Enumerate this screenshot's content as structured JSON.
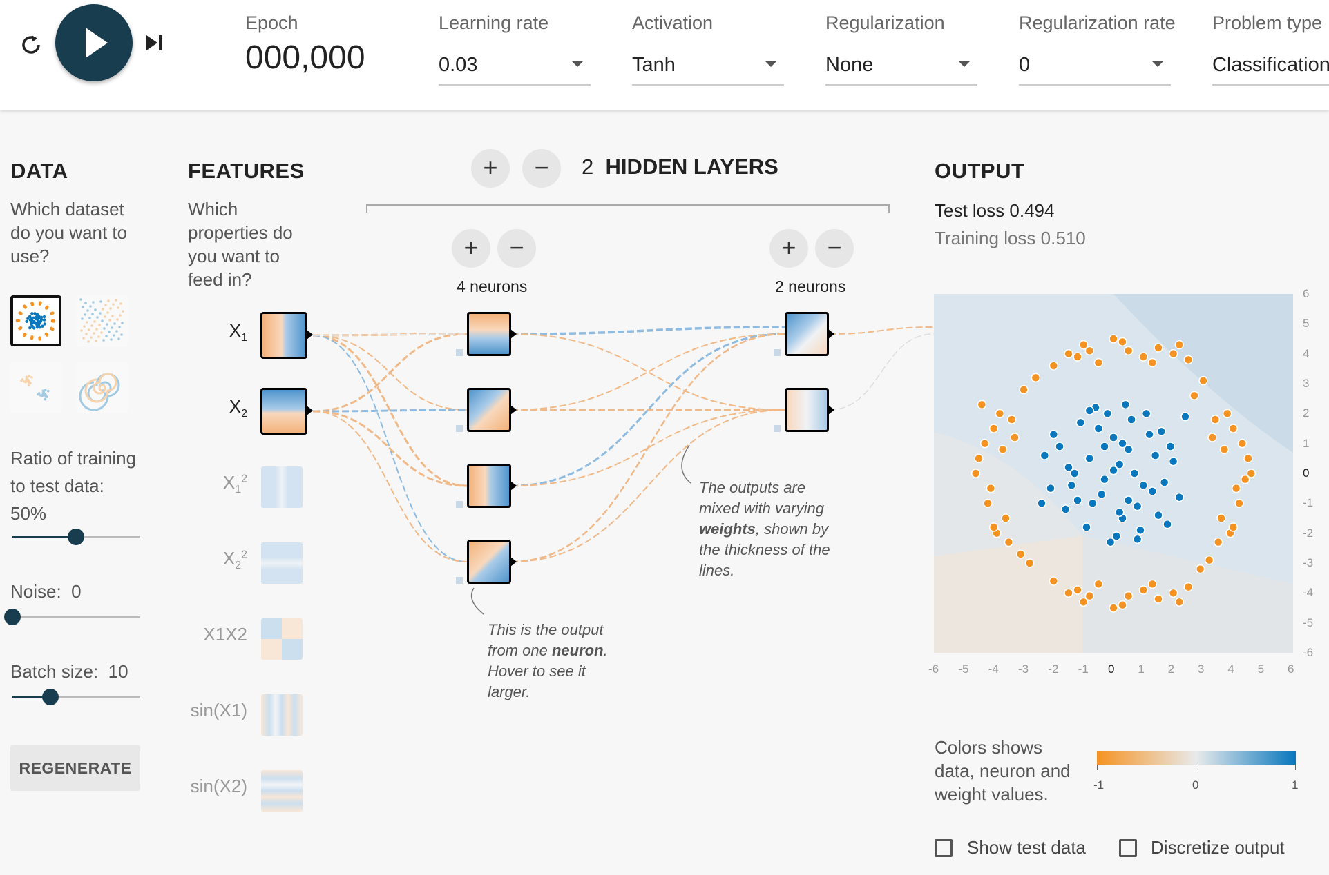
{
  "controls": {
    "epoch_label": "Epoch",
    "epoch_value": "000,000",
    "learning_rate": {
      "label": "Learning rate",
      "value": "0.03"
    },
    "activation": {
      "label": "Activation",
      "value": "Tanh"
    },
    "regularization": {
      "label": "Regularization",
      "value": "None"
    },
    "regularization_rate": {
      "label": "Regularization rate",
      "value": "0"
    },
    "problem_type": {
      "label": "Problem type",
      "value": "Classification"
    }
  },
  "data_panel": {
    "title": "DATA",
    "question": "Which dataset do you want to use?",
    "ratio_label": "Ratio of training to test data:",
    "ratio_value": "50%",
    "ratio_fraction": 0.5,
    "noise_label": "Noise:",
    "noise_value": "0",
    "noise_fraction": 0,
    "batch_label": "Batch size:",
    "batch_value": "10",
    "batch_fraction": 0.3,
    "regenerate_label": "REGENERATE"
  },
  "features_panel": {
    "title": "FEATURES",
    "question": "Which properties do you want to feed in?",
    "features": [
      {
        "name": "X",
        "sub": "1",
        "sup": "",
        "active": true
      },
      {
        "name": "X",
        "sub": "2",
        "sup": "",
        "active": true
      },
      {
        "name": "X",
        "sub": "1",
        "sup": "2",
        "active": false
      },
      {
        "name": "X",
        "sub": "2",
        "sup": "2",
        "active": false
      },
      {
        "name": "X1X2",
        "sub": "",
        "sup": "",
        "active": false
      },
      {
        "name": "sin(X1)",
        "sub": "",
        "sup": "",
        "active": false
      },
      {
        "name": "sin(X2)",
        "sub": "",
        "sup": "",
        "active": false
      }
    ]
  },
  "network": {
    "layer_count": "2",
    "layers_label": "HIDDEN LAYERS",
    "layer1_label": "4 neurons",
    "layer2_label": "2 neurons",
    "annotation_neuron_1": "This is the output from one",
    "annotation_neuron_bold": "neuron",
    "annotation_neuron_2": ". Hover to see it larger.",
    "annotation_weights_1": "The outputs are mixed with varying",
    "annotation_weights_bold": "weights",
    "annotation_weights_2": ", shown by the thickness of the lines."
  },
  "output": {
    "title": "OUTPUT",
    "test_loss_label": "Test loss",
    "test_loss_value": "0.494",
    "training_loss_label": "Training loss",
    "training_loss_value": "0.510",
    "colors_note": "Colors shows data, neuron and weight values.",
    "colorbar_ticks": [
      "-1",
      "0",
      "1"
    ],
    "show_test_label": "Show test data",
    "discretize_label": "Discretize output",
    "colors": {
      "orange": "#f59322",
      "blue": "#0877bd"
    }
  },
  "chart_data": {
    "type": "scatter",
    "xlim": [
      -6,
      6
    ],
    "ylim": [
      -6,
      6
    ],
    "x_ticks": [
      "-6",
      "-5",
      "-4",
      "-3",
      "-2",
      "-1",
      "0",
      "1",
      "2",
      "3",
      "4",
      "5",
      "6"
    ],
    "y_ticks": [
      "6",
      "5",
      "4",
      "3",
      "2",
      "1",
      "0",
      "-1",
      "-2",
      "-3",
      "-4",
      "-5",
      "-6"
    ],
    "series": [
      {
        "color": "#0877bd",
        "x": [
          0.2,
          -0.3,
          0.5,
          -0.8,
          1.0,
          0.0,
          -1.2,
          1.4,
          -0.5,
          0.8,
          -1.5,
          0.3,
          1.7,
          -0.2,
          -1.8,
          0.6,
          -0.9,
          1.2,
          0.1,
          -0.6,
          2.0,
          -2.1,
          0.9,
          -1.1,
          1.5,
          -0.4,
          0.4,
          -1.6,
          1.9,
          -0.1,
          0.7,
          -2.3,
          2.2,
          -0.7,
          1.1,
          0.0,
          -1.3,
          1.3,
          0.5,
          -0.3,
          2.4,
          -2.0,
          0.2,
          1.6,
          -1.4,
          0.8,
          -0.8,
          0.3,
          -2.4,
          1.8
        ],
        "y": [
          0.3,
          -0.2,
          0.8,
          0.5,
          -0.4,
          1.2,
          -0.9,
          0.6,
          1.5,
          -1.1,
          0.2,
          -1.5,
          -0.3,
          2.0,
          0.9,
          1.8,
          -1.8,
          1.3,
          -2.1,
          2.2,
          0.4,
          -0.5,
          -1.9,
          1.7,
          -1.4,
          -0.7,
          2.3,
          -1.2,
          0.9,
          -2.3,
          0.0,
          0.6,
          -0.8,
          -1.0,
          2.0,
          0.1,
          0.0,
          -0.6,
          -0.9,
          0.9,
          1.9,
          1.3,
          -1.3,
          1.4,
          -0.4,
          -2.2,
          2.1,
          1.0,
          -1.0,
          -1.7
        ]
      },
      {
        "color": "#f59322",
        "x": [
          -4.0,
          -3.8,
          -4.3,
          -4.1,
          -3.6,
          -4.5,
          -3.4,
          -4.2,
          -3.9,
          -4.4,
          -3.5,
          -4.6,
          -3.3,
          -4.0,
          -3.7,
          4.0,
          3.8,
          4.3,
          4.1,
          3.6,
          4.5,
          3.4,
          4.2,
          3.9,
          4.4,
          3.5,
          4.6,
          3.3,
          4.0,
          3.7,
          -1.5,
          -1.0,
          0.0,
          0.5,
          1.0,
          1.5,
          2.0,
          -0.5,
          2.5,
          -2.0,
          -1.2,
          1.3,
          0.3,
          -0.8,
          2.2,
          -1.5,
          -1.0,
          0.0,
          0.5,
          1.0,
          1.5,
          2.0,
          -0.5,
          2.5,
          -2.0,
          -1.2,
          1.3,
          0.3,
          -0.8,
          2.2,
          -3.0,
          -2.6,
          3.0,
          2.7,
          -2.8,
          3.2,
          -3.1,
          2.9
        ],
        "y": [
          1.5,
          2.0,
          1.0,
          -0.5,
          -1.5,
          0.5,
          1.8,
          -1.0,
          -2.0,
          2.3,
          -2.3,
          0.0,
          1.2,
          -1.8,
          0.8,
          1.5,
          2.0,
          1.0,
          -0.5,
          -1.5,
          0.5,
          1.8,
          -1.0,
          -2.0,
          -0.2,
          -2.3,
          0.0,
          1.2,
          -1.8,
          0.8,
          4.0,
          4.3,
          4.5,
          4.1,
          3.9,
          4.2,
          4.0,
          3.7,
          3.8,
          3.6,
          3.9,
          3.7,
          4.4,
          4.1,
          4.3,
          -4.0,
          -4.3,
          -4.5,
          -4.1,
          -3.9,
          -4.2,
          -4.0,
          -3.7,
          -3.8,
          -3.6,
          -3.9,
          -3.7,
          -4.4,
          -4.1,
          -4.3,
          2.8,
          3.2,
          3.1,
          2.6,
          -3.0,
          -2.9,
          -2.7,
          -3.2
        ]
      }
    ]
  }
}
